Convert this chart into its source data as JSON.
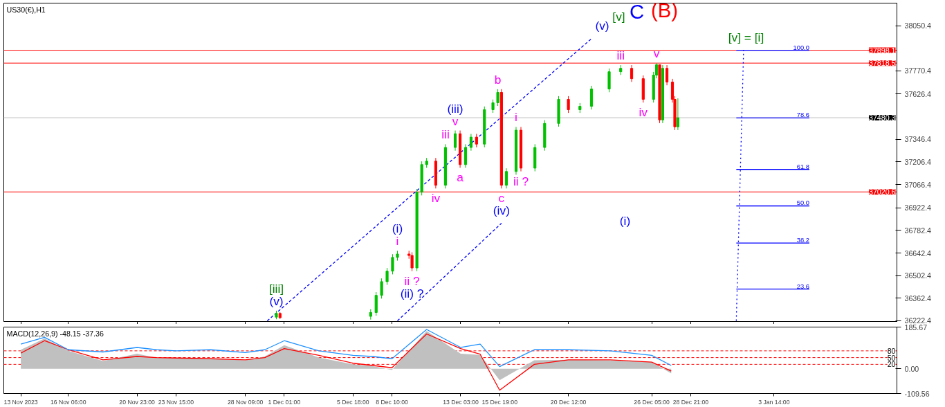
{
  "chart_data": [
    {
      "type": "candlestick",
      "title": "US30(€),H1",
      "xlim": [
        "2023-11-11T20:00",
        "2024-01-12T00:00"
      ],
      "ylim": [
        36218,
        38190
      ],
      "tick_labels": "y",
      "yticks": [
        38050.4,
        37770.4,
        37626.4,
        37346.4,
        37206.4,
        37066.4,
        36922.4,
        36782.4,
        36642.4,
        36502.4,
        36362.4,
        36222.4
      ],
      "xticks": [
        "2023-11-13T00:00",
        "2023-11-16T06:00",
        "2023-11-20T23:00",
        "2023-11-23T15:00",
        "2023-11-28T09:00",
        "2023-12-01T01:00",
        "2023-12-05T18:00",
        "2023-12-08T10:00",
        "2023-12-13T03:00",
        "2023-12-15T19:00",
        "2023-12-20T12:00",
        "2023-12-26T05:00",
        "2023-12-28T21:00",
        "2024-01-03T14:00"
      ],
      "x": [
        "2023-11-30T12:00",
        "2023-11-30T18:00",
        "2023-12-06T23:00",
        "2023-12-07T08:00",
        "2023-12-07T17:00",
        "2023-12-08T02:00",
        "2023-12-08T11:00",
        "2023-12-08T19:00",
        "2023-12-09T14:00",
        "2023-12-09T19:00",
        "2023-12-10T03:00",
        "2023-12-10T11:00",
        "2023-12-10T19:00",
        "2023-12-11T10:00",
        "2023-12-12T02:00",
        "2023-12-12T18:00",
        "2023-12-13T02:00",
        "2023-12-13T11:00",
        "2023-12-13T20:00",
        "2023-12-14T05:00",
        "2023-12-14T18:00",
        "2023-12-15T08:00",
        "2023-12-15T16:00",
        "2023-12-15T22:00",
        "2023-12-16T06:00",
        "2023-12-16T22:00",
        "2023-12-17T06:00",
        "2023-12-18T05:00",
        "2023-12-18T21:00",
        "2023-12-19T20:00",
        "2023-12-20T12:00",
        "2023-12-21T07:00",
        "2023-12-22T02:00",
        "2023-12-23T07:00",
        "2023-12-24T02:00",
        "2023-12-24T20:00",
        "2023-12-25T15:00",
        "2023-12-26T08:00",
        "2023-12-26T13:00",
        "2023-12-26T18:00",
        "2023-12-26T23:00",
        "2023-12-27T06:00",
        "2023-12-27T15:00",
        "2023-12-27T19:00",
        "2023-12-28T00:00"
      ],
      "ohlc": [
        [
          36245,
          36285,
          36232,
          36268
        ],
        [
          36268,
          36276,
          36234,
          36242
        ],
        [
          36250,
          36294,
          36230,
          36274
        ],
        [
          36274,
          36400,
          36254,
          36380
        ],
        [
          36380,
          36485,
          36360,
          36465
        ],
        [
          36465,
          36550,
          36445,
          36530
        ],
        [
          36530,
          36635,
          36510,
          36615
        ],
        [
          36615,
          36656,
          36595,
          36636
        ],
        [
          36636,
          36656,
          36607,
          36627
        ],
        [
          36627,
          36647,
          36530,
          36550
        ],
        [
          36550,
          37039,
          36530,
          37019
        ],
        [
          37019,
          37210,
          36999,
          37190
        ],
        [
          37190,
          37231,
          37170,
          37211
        ],
        [
          37211,
          37231,
          37042,
          37062
        ],
        [
          37062,
          37316,
          37042,
          37296
        ],
        [
          37296,
          37401,
          37276,
          37381
        ],
        [
          37381,
          37401,
          37170,
          37190
        ],
        [
          37190,
          37316,
          37170,
          37296
        ],
        [
          37296,
          37380,
          37276,
          37360
        ],
        [
          37360,
          37380,
          37297,
          37317
        ],
        [
          37317,
          37550,
          37297,
          37530
        ],
        [
          37530,
          37593,
          37510,
          37573
        ],
        [
          37573,
          37657,
          37553,
          37637
        ],
        [
          37637,
          37657,
          37042,
          37062
        ],
        [
          37062,
          37167,
          37042,
          37147
        ],
        [
          37147,
          37423,
          37127,
          37403
        ],
        [
          37403,
          37423,
          37148,
          37168
        ],
        [
          37168,
          37316,
          37148,
          37296
        ],
        [
          37296,
          37465,
          37276,
          37445
        ],
        [
          37445,
          37614,
          37425,
          37594
        ],
        [
          37594,
          37614,
          37510,
          37530
        ],
        [
          37530,
          37571,
          37510,
          37551
        ],
        [
          37551,
          37678,
          37531,
          37658
        ],
        [
          37658,
          37785,
          37638,
          37765
        ],
        [
          37765,
          37806,
          37745,
          37786
        ],
        [
          37786,
          37806,
          37702,
          37722
        ],
        [
          37722,
          37742,
          37574,
          37594
        ],
        [
          37594,
          37764,
          37574,
          37744
        ],
        [
          37744,
          37818,
          37724,
          37808
        ],
        [
          37808,
          37810,
          37447,
          37467
        ],
        [
          37467,
          37806,
          37447,
          37786
        ],
        [
          37786,
          37806,
          37681,
          37701
        ],
        [
          37701,
          37721,
          37574,
          37594
        ],
        [
          37594,
          37614,
          37404,
          37424
        ],
        [
          37424,
          37600,
          37404,
          37480
        ]
      ],
      "ref_lines": [
        {
          "axis": "y",
          "value": 37898.1,
          "label": "37898.1",
          "color": "#ff0000"
        },
        {
          "axis": "y",
          "value": 37818.5,
          "label": "37818.5",
          "color": "#ff0000"
        },
        {
          "axis": "y",
          "value": 37020.6,
          "label": "37020.6",
          "color": "#ff0000"
        },
        {
          "axis": "y",
          "value": 37480.3,
          "label": "37480.3",
          "color": "#c0c0c0"
        }
      ],
      "series": [
        {
          "type": "line",
          "color": "#0000ff",
          "line_style": "dashed",
          "x": [
            "2023-11-29T21:00",
            "2023-12-22T02:00"
          ],
          "values": [
            36222,
            37970
          ]
        },
        {
          "type": "line",
          "color": "#0000ff",
          "line_style": "dashed",
          "x": [
            "2023-12-08T19:00",
            "2023-12-15T22:00"
          ],
          "values": [
            36222,
            36827
          ]
        },
        {
          "type": "line",
          "color": "#0000ff",
          "line_style": "dotted",
          "x": [
            "2024-01-01T00:00",
            "2024-01-01T12:00"
          ],
          "values": [
            36222,
            37898
          ]
        },
        {
          "type": "line",
          "color": "#0000ff",
          "line_style": "solid",
          "x": [
            "2024-01-01T00:00",
            "2024-01-06T00:00"
          ],
          "values": [
            37898,
            37898
          ]
        },
        {
          "type": "line",
          "color": "#0000ff",
          "line_style": "solid",
          "x": [
            "2024-01-01T00:00",
            "2024-01-06T00:00"
          ],
          "values": [
            37479,
            37479
          ]
        },
        {
          "type": "line",
          "color": "#0000ff",
          "line_style": "solid",
          "x": [
            "2024-01-01T00:00",
            "2024-01-06T00:00"
          ],
          "values": [
            37160,
            37160
          ]
        },
        {
          "type": "line",
          "color": "#0000ff",
          "line_style": "solid",
          "x": [
            "2024-01-01T00:00",
            "2024-01-06T00:00"
          ],
          "values": [
            36934,
            36934
          ]
        },
        {
          "type": "line",
          "color": "#0000ff",
          "line_style": "solid",
          "x": [
            "2024-01-01T00:00",
            "2024-01-06T00:00"
          ],
          "values": [
            36704,
            36704
          ]
        },
        {
          "type": "line",
          "color": "#0000ff",
          "line_style": "solid",
          "x": [
            "2024-01-01T00:00",
            "2024-01-06T00:00"
          ],
          "values": [
            36419,
            36419
          ]
        }
      ],
      "annotations": [
        {
          "text": "(v)",
          "x": "2023-11-30T12:00",
          "y": 36285
        },
        {
          "text": "[iii]",
          "x": "2023-11-30T12:00",
          "y": 36285
        },
        {
          "text": "i",
          "x": "2023-12-08T19:00",
          "y": 36656
        },
        {
          "text": "(i)",
          "x": "2023-12-08T19:00",
          "y": 36656
        },
        {
          "text": "ii ?",
          "x": "2023-12-09T19:00",
          "y": 36530
        },
        {
          "text": "(ii) ?",
          "x": "2023-12-09T19:00",
          "y": 36530
        },
        {
          "text": "iii",
          "x": "2023-12-12T02:00",
          "y": 37316
        },
        {
          "text": "v",
          "x": "2023-12-12T18:00",
          "y": 37401
        },
        {
          "text": "(iii)",
          "x": "2023-12-12T18:00",
          "y": 37401
        },
        {
          "text": "iv",
          "x": "2023-12-11T10:00",
          "y": 37042
        },
        {
          "text": "a",
          "x": "2023-12-13T02:00",
          "y": 37170
        },
        {
          "text": "b",
          "x": "2023-12-15T16:00",
          "y": 37657
        },
        {
          "text": "c",
          "x": "2023-12-15T22:00",
          "y": 37042
        },
        {
          "text": "(iv)",
          "x": "2023-12-15T22:00",
          "y": 37042
        },
        {
          "text": "i",
          "x": "2023-12-16T22:00",
          "y": 37423
        },
        {
          "text": "ii ?",
          "x": "2023-12-17T06:00",
          "y": 37148
        },
        {
          "text": "iii",
          "x": "2023-12-24T02:00",
          "y": 37806
        },
        {
          "text": "v",
          "x": "2023-12-26T13:00",
          "y": 37818
        },
        {
          "text": "iv",
          "x": "2023-12-25T15:00",
          "y": 37574
        },
        {
          "text": "100.0",
          "x": "2024-01-06T00:00",
          "y": 37898
        },
        {
          "text": "78.6",
          "x": "2024-01-06T00:00",
          "y": 37479
        },
        {
          "text": "61.8",
          "x": "2024-01-06T00:00",
          "y": 37160
        },
        {
          "text": "50.0",
          "x": "2024-01-06T00:00",
          "y": 36934
        },
        {
          "text": "38.2",
          "x": "2024-01-06T00:00",
          "y": 36704
        },
        {
          "text": "23.6",
          "x": "2024-01-06T00:00",
          "y": 36419
        },
        "(v)",
        "[v]",
        "C",
        "(B)",
        "[v] = [i]",
        "(i)"
      ]
    },
    {
      "type": "line",
      "title": "MACD(12,26,9) -48.15 -37.36",
      "xlim": [
        "2023-11-11T20:00",
        "2024-01-12T00:00"
      ],
      "ylim": [
        -109.56,
        185.67
      ],
      "yticks": [
        185.67,
        {
          "value": 0,
          "label": "0.00"
        },
        -109.56
      ],
      "xticks": [
        {
          "value": "2023-11-13T00:00",
          "label": "13 Nov 2023"
        },
        {
          "value": "2023-11-16T06:00",
          "label": "16 Nov 06:00"
        },
        {
          "value": "2023-11-20T23:00",
          "label": "20 Nov 23:00"
        },
        {
          "value": "2023-11-23T15:00",
          "label": "23 Nov 15:00"
        },
        {
          "value": "2023-11-28T09:00",
          "label": "28 Nov 09:00"
        },
        {
          "value": "2023-12-01T01:00",
          "label": "1 Dec 01:00"
        },
        {
          "value": "2023-12-05T18:00",
          "label": "5 Dec 18:00"
        },
        {
          "value": "2023-12-08T10:00",
          "label": "8 Dec 10:00"
        },
        {
          "value": "2023-12-13T03:00",
          "label": "13 Dec 03:00"
        },
        {
          "value": "2023-12-15T19:00",
          "label": "15 Dec 19:00"
        },
        {
          "value": "2023-12-20T12:00",
          "label": "20 Dec 12:00"
        },
        {
          "value": "2023-12-26T05:00",
          "label": "26 Dec 05:00"
        },
        {
          "value": "2023-12-28T21:00",
          "label": "28 Dec 21:00"
        },
        {
          "value": "2024-01-03T14:00",
          "label": "3 Jan 14:00"
        }
      ],
      "x": [
        "2023-11-13T00:00",
        "2023-11-14T15:00",
        "2023-11-16T06:00",
        "2023-11-18T15:00",
        "2023-11-20T23:00",
        "2023-11-22T07:00",
        "2023-11-23T15:00",
        "2023-11-26T00:00",
        "2023-11-28T09:00",
        "2023-11-29T17:00",
        "2023-12-01T01:00",
        "2023-12-03T10:00",
        "2023-12-05T18:00",
        "2023-12-07T02:00",
        "2023-12-08T10:00",
        "2023-12-10T19:00",
        "2023-12-13T03:00",
        "2023-12-14T11:00",
        "2023-12-15T19:00",
        "2023-12-18T04:00",
        "2023-12-20T12:00",
        "2023-12-23T09:00",
        "2023-12-26T05:00",
        "2023-12-27T13:00"
      ],
      "ref_lines": [
        {
          "axis": "y",
          "value": 80,
          "label": "80",
          "color": "#ff0000",
          "line_style": "dashed"
        },
        {
          "axis": "y",
          "value": 50,
          "label": "50",
          "color": "#ff0000",
          "line_style": "dashed"
        },
        {
          "axis": "y",
          "value": 20,
          "label": "20",
          "color": "#ff0000",
          "line_style": "dashed"
        }
      ],
      "series": [
        {
          "type": "area",
          "color": "#c0c0c0",
          "values": [
            85,
            135,
            80,
            35,
            67,
            49,
            49,
            45,
            38,
            55,
            105,
            50,
            20,
            13,
            -5,
            168,
            67,
            62,
            -50,
            38,
            40,
            38,
            30,
            -20
          ]
        },
        {
          "type": "line",
          "color": "#ff0000",
          "values": [
            70,
            125,
            85,
            40,
            55,
            50,
            48,
            45,
            40,
            50,
            90,
            60,
            25,
            15,
            5,
            155,
            90,
            65,
            -95,
            20,
            40,
            40,
            30,
            -10
          ]
        },
        {
          "type": "line",
          "color": "#1e90ff",
          "values": [
            110,
            140,
            85,
            75,
            95,
            85,
            80,
            85,
            72,
            85,
            125,
            80,
            60,
            55,
            45,
            175,
            95,
            110,
            10,
            85,
            85,
            80,
            60,
            15
          ]
        }
      ]
    }
  ]
}
